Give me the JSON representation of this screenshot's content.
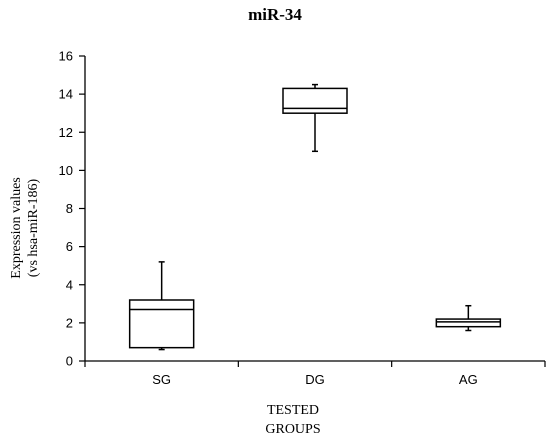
{
  "chart_data": {
    "type": "box",
    "title": "miR-34",
    "xlabel": [
      "TESTED",
      "GROUPS"
    ],
    "ylabel": [
      "Expression values",
      "(vs hsa-miR-186)"
    ],
    "ylim": [
      0,
      16
    ],
    "yticks": [
      0,
      2,
      4,
      6,
      8,
      10,
      12,
      14,
      16
    ],
    "grid": false,
    "categories": [
      "SG",
      "DG",
      "AG"
    ],
    "boxes": [
      {
        "category": "SG",
        "whisker_low": 0.6,
        "q1": 0.7,
        "median": 2.7,
        "q3": 3.2,
        "whisker_high": 5.2
      },
      {
        "category": "DG",
        "whisker_low": 11.0,
        "q1": 13.0,
        "median": 13.25,
        "q3": 14.3,
        "whisker_high": 14.5
      },
      {
        "category": "AG",
        "whisker_low": 1.6,
        "q1": 1.8,
        "median": 2.05,
        "q3": 2.2,
        "whisker_high": 2.9
      }
    ]
  }
}
